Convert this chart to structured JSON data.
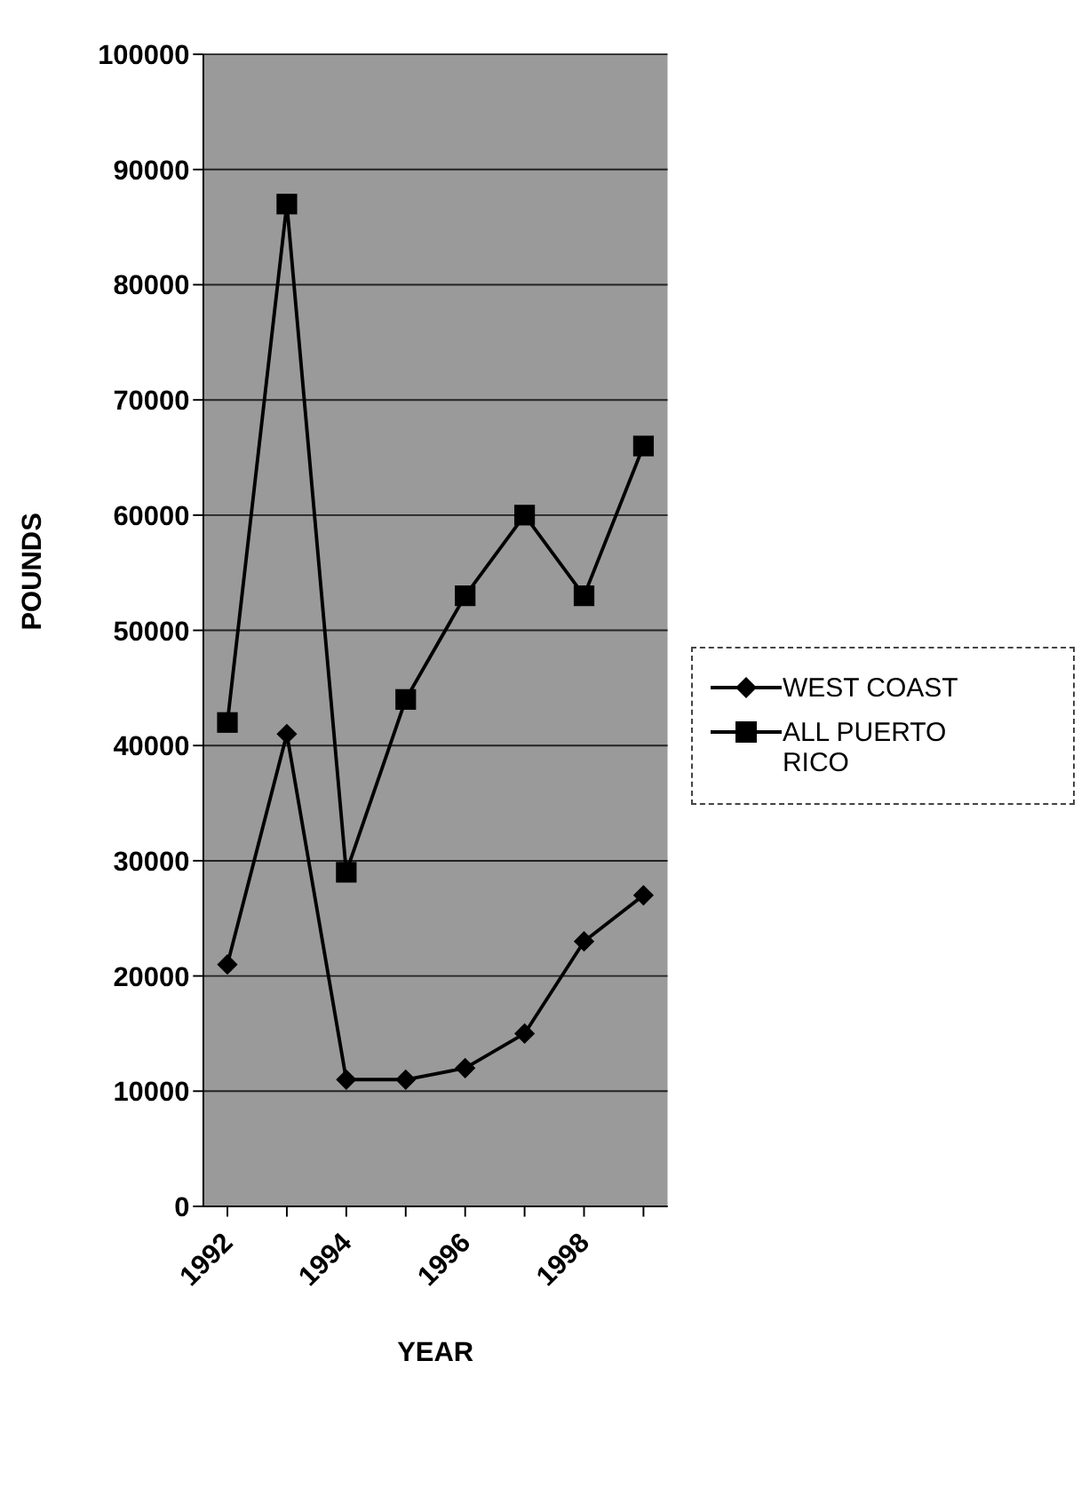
{
  "chart_data": {
    "type": "line",
    "xlabel": "YEAR",
    "ylabel": "POUNDS",
    "categories": [
      "1992",
      null,
      "1994",
      null,
      "1996",
      null,
      "1998",
      null
    ],
    "series": [
      {
        "name": "WEST COAST",
        "color": "#000000",
        "marker": "diamond",
        "values": [
          21000,
          41000,
          11000,
          11000,
          12000,
          15000,
          23000,
          27000
        ]
      },
      {
        "name": "ALL PUERTO RICO",
        "color": "#000000",
        "marker": "square",
        "values": [
          42000,
          87000,
          29000,
          44000,
          53000,
          60000,
          53000,
          66000
        ]
      }
    ],
    "ylim": [
      0,
      100000
    ],
    "yticks": [
      0,
      10000,
      20000,
      30000,
      40000,
      50000,
      60000,
      70000,
      80000,
      90000,
      100000
    ],
    "grid": "y",
    "legend": "right"
  }
}
